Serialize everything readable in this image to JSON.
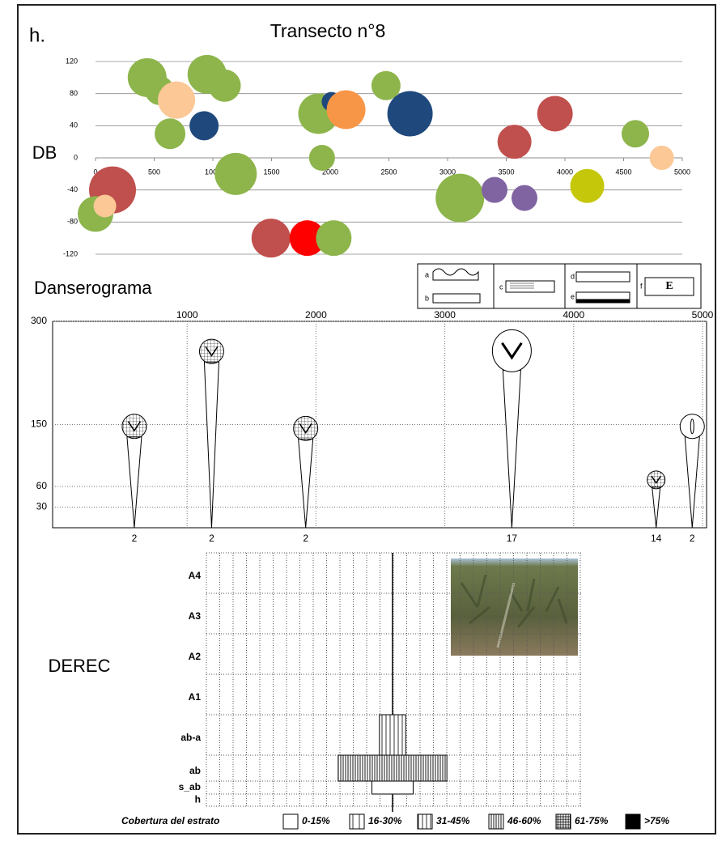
{
  "panel": "h.",
  "title": "Transecto n°8",
  "chart_data": [
    {
      "type": "bubble",
      "ylabel": "DB",
      "xlim": [
        0,
        5000
      ],
      "ylim": [
        -120,
        120
      ],
      "xticks": [
        0,
        500,
        1000,
        1500,
        2000,
        2500,
        3000,
        3500,
        4000,
        4500,
        5000
      ],
      "yticks": [
        -120,
        -80,
        -40,
        0,
        40,
        80,
        120
      ],
      "grid": true,
      "x": [
        440,
        545,
        690,
        950,
        1100,
        635,
        925,
        1195,
        145,
        0,
        80,
        1495,
        1805,
        2030,
        1900,
        2010,
        2135,
        1930,
        2475,
        2680,
        3105,
        3400,
        3655,
        3570,
        3915,
        4190,
        4600,
        4825
      ],
      "values": [
        100,
        84,
        72,
        104,
        90,
        30,
        40,
        -20,
        -40,
        -70,
        -60,
        -100,
        -100,
        -100,
        55,
        70,
        60,
        0,
        90,
        55,
        -50,
        -40,
        -50,
        20,
        55,
        -35,
        30,
        0
      ],
      "sizes": [
        24,
        18,
        23,
        24,
        20,
        19,
        18,
        26,
        29,
        22,
        14,
        24,
        22,
        22,
        25,
        12,
        24,
        16,
        18,
        28,
        30,
        16,
        16,
        21,
        22,
        21,
        17,
        15
      ],
      "colors": [
        "#8db54b",
        "#8db54b",
        "#fbc896",
        "#8db54b",
        "#8db54b",
        "#8db54b",
        "#1f497d",
        "#8db54b",
        "#c0504d",
        "#8db54b",
        "#fbc896",
        "#c0504d",
        "#ff0000",
        "#8db54b",
        "#8db54b",
        "#1f497d",
        "#f79646",
        "#8db54b",
        "#8db54b",
        "#1f497d",
        "#8db54b",
        "#8064a2",
        "#8064a2",
        "#c0504d",
        "#c0504d",
        "#c5c70a",
        "#8db54b",
        "#fbc896"
      ]
    },
    {
      "type": "danserogram",
      "title": "Danserograma",
      "xlim": [
        0,
        5000
      ],
      "ylim": [
        0,
        300
      ],
      "xticks": [
        1000,
        2000,
        3000,
        4000,
        5000
      ],
      "yticks": [
        30,
        60,
        150,
        300
      ],
      "x": [
        590,
        1190,
        1920,
        3520,
        4640,
        4920
      ],
      "values": [
        132,
        241,
        129,
        229,
        59,
        132
      ],
      "counts": [
        2,
        2,
        2,
        17,
        14,
        2
      ],
      "crowns": [
        "hatched",
        "hatched",
        "hatched",
        "v",
        "hatched",
        "leaf"
      ],
      "symbols": [
        "a",
        "b",
        "c",
        "d",
        "e",
        "f"
      ],
      "symbol_f": "E"
    },
    {
      "type": "derec",
      "title": "DEREC",
      "categories": [
        "A4",
        "A3",
        "A2",
        "A1",
        "ab-a",
        "ab",
        "s_ab",
        "h"
      ],
      "values": [
        null,
        null,
        null,
        null,
        7,
        29,
        11,
        null
      ],
      "cover": [
        null,
        null,
        null,
        null,
        2,
        3,
        0,
        null
      ],
      "legend_title": "Cobertura del estrato",
      "legend": [
        "0-15%",
        "16-30%",
        "31-45%",
        "46-60%",
        "61-75%",
        ">75%"
      ]
    }
  ]
}
